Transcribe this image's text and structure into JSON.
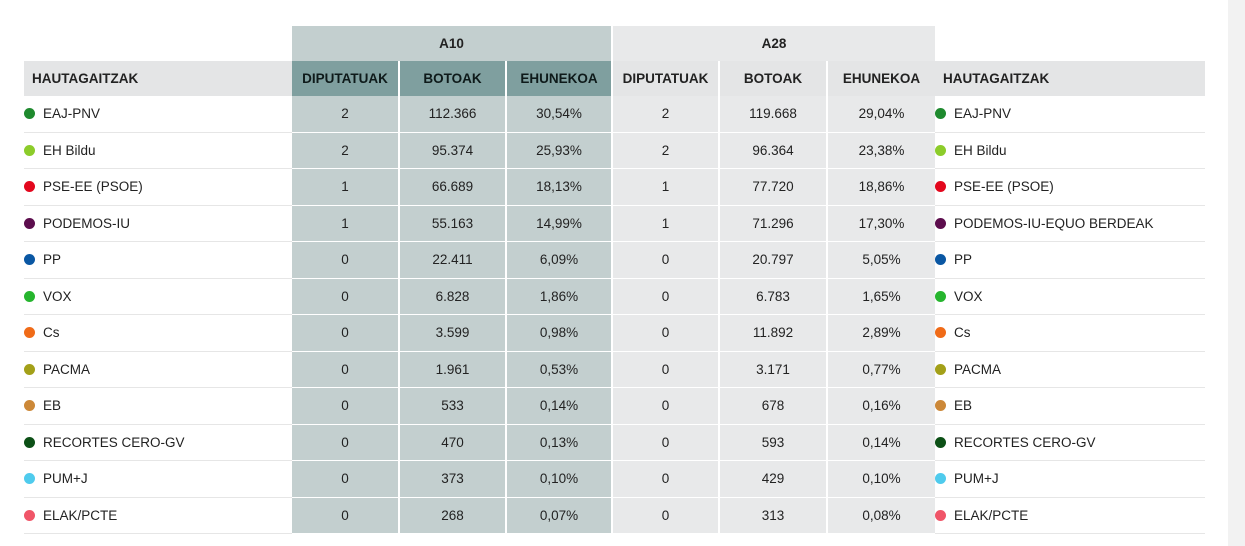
{
  "header": {
    "group_a10": "A10",
    "group_a28": "A28",
    "col_party": "HAUTAGAITZAK",
    "col_seats": "DIPUTATUAK",
    "col_votes": "BOTOAK",
    "col_pct": "EHUNEKOA"
  },
  "rows": [
    {
      "party_left": "EAJ-PNV",
      "party_right": "EAJ-PNV",
      "color": "#1e8a2e",
      "a10": {
        "seats": "2",
        "votes": "112.366",
        "pct": "30,54%"
      },
      "a28": {
        "seats": "2",
        "votes": "119.668",
        "pct": "29,04%"
      }
    },
    {
      "party_left": "EH Bildu",
      "party_right": "EH Bildu",
      "color": "#8ccc2a",
      "a10": {
        "seats": "2",
        "votes": "95.374",
        "pct": "25,93%"
      },
      "a28": {
        "seats": "2",
        "votes": "96.364",
        "pct": "23,38%"
      }
    },
    {
      "party_left": "PSE-EE (PSOE)",
      "party_right": "PSE-EE (PSOE)",
      "color": "#e3071d",
      "a10": {
        "seats": "1",
        "votes": "66.689",
        "pct": "18,13%"
      },
      "a28": {
        "seats": "1",
        "votes": "77.720",
        "pct": "18,86%"
      }
    },
    {
      "party_left": "PODEMOS-IU",
      "party_right": "PODEMOS-IU-EQUO BERDEAK",
      "color": "#5c0d4d",
      "a10": {
        "seats": "1",
        "votes": "55.163",
        "pct": "14,99%"
      },
      "a28": {
        "seats": "1",
        "votes": "71.296",
        "pct": "17,30%"
      }
    },
    {
      "party_left": "PP",
      "party_right": "PP",
      "color": "#0a57a3",
      "a10": {
        "seats": "0",
        "votes": "22.411",
        "pct": "6,09%"
      },
      "a28": {
        "seats": "0",
        "votes": "20.797",
        "pct": "5,05%"
      }
    },
    {
      "party_left": "VOX",
      "party_right": "VOX",
      "color": "#26b52e",
      "a10": {
        "seats": "0",
        "votes": "6.828",
        "pct": "1,86%"
      },
      "a28": {
        "seats": "0",
        "votes": "6.783",
        "pct": "1,65%"
      }
    },
    {
      "party_left": "Cs",
      "party_right": "Cs",
      "color": "#f06b18",
      "a10": {
        "seats": "0",
        "votes": "3.599",
        "pct": "0,98%"
      },
      "a28": {
        "seats": "0",
        "votes": "11.892",
        "pct": "2,89%"
      }
    },
    {
      "party_left": "PACMA",
      "party_right": "PACMA",
      "color": "#a3a018",
      "a10": {
        "seats": "0",
        "votes": "1.961",
        "pct": "0,53%"
      },
      "a28": {
        "seats": "0",
        "votes": "3.171",
        "pct": "0,77%"
      }
    },
    {
      "party_left": "EB",
      "party_right": "EB",
      "color": "#cc8838",
      "a10": {
        "seats": "0",
        "votes": "533",
        "pct": "0,14%"
      },
      "a28": {
        "seats": "0",
        "votes": "678",
        "pct": "0,16%"
      }
    },
    {
      "party_left": "RECORTES CERO-GV",
      "party_right": "RECORTES CERO-GV",
      "color": "#0c5016",
      "a10": {
        "seats": "0",
        "votes": "470",
        "pct": "0,13%"
      },
      "a28": {
        "seats": "0",
        "votes": "593",
        "pct": "0,14%"
      }
    },
    {
      "party_left": "PUM+J",
      "party_right": "PUM+J",
      "color": "#4fcbed",
      "a10": {
        "seats": "0",
        "votes": "373",
        "pct": "0,10%"
      },
      "a28": {
        "seats": "0",
        "votes": "429",
        "pct": "0,10%"
      }
    },
    {
      "party_left": "ELAK/PCTE",
      "party_right": "ELAK/PCTE",
      "color": "#f05568",
      "a10": {
        "seats": "0",
        "votes": "268",
        "pct": "0,07%"
      },
      "a28": {
        "seats": "0",
        "votes": "313",
        "pct": "0,08%"
      }
    }
  ]
}
